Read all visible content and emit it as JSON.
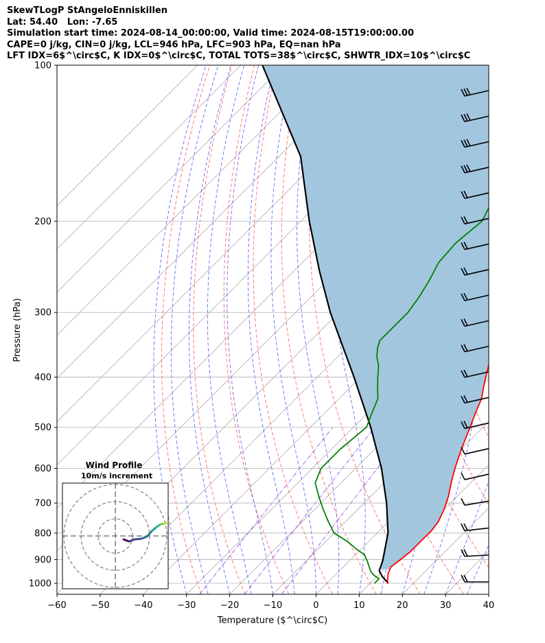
{
  "header": {
    "line1": "SkewTLogP StAngeloEnniskillen",
    "line2": "Lat: 54.40   Lon: -7.65",
    "line3": "Simulation start time: 2024-08-14_00:00:00, Valid time: 2024-08-15T19:00:00.00",
    "line4": "CAPE=0 j/kg, CIN=0 j/kg, LCL=946 hPa, LFC=903 hPa, EQ=nan hPa",
    "line5": "LFT IDX=6$^\\circ$C, K IDX=0$^\\circ$C, TOTAL TOTS=38$^\\circ$C, SHWTR_IDX=10$^\\circ$C"
  },
  "chart_data": {
    "type": "skewt",
    "xlabel": "Temperature ($^\\circ$C)",
    "ylabel": "Pressure (hPa)",
    "xlim": [
      -60,
      40
    ],
    "ylim": [
      1050,
      100
    ],
    "log_y": true,
    "grid": true,
    "x_ticks": [
      "−60",
      "−50",
      "−40",
      "−30",
      "−20",
      "−10",
      "0",
      "10",
      "20",
      "30",
      "40"
    ],
    "y_ticks": [
      "100",
      "200",
      "300",
      "400",
      "500",
      "600",
      "700",
      "800",
      "900",
      "1000"
    ],
    "colors": {
      "temperature": "#ff0000",
      "dewpoint": "#008000",
      "parcel": "#000000",
      "fill": "#a3c6df",
      "dry_adiabat": "#ff4444",
      "moist_adiabat": "#4444ff",
      "mixing_ratio": "#8a2be2",
      "isotherm": "#aaaaaa"
    },
    "series": [
      {
        "key": "temperature",
        "points": [
          [
            1000,
            14
          ],
          [
            960,
            12
          ],
          [
            930,
            11
          ],
          [
            900,
            11.5
          ],
          [
            870,
            12
          ],
          [
            820,
            12
          ],
          [
            790,
            12
          ],
          [
            760,
            11.5
          ],
          [
            720,
            10
          ],
          [
            680,
            8
          ],
          [
            640,
            5.5
          ],
          [
            600,
            3
          ],
          [
            550,
            0
          ],
          [
            500,
            -3
          ],
          [
            470,
            -5
          ],
          [
            440,
            -7
          ],
          [
            420,
            -9
          ],
          [
            400,
            -11
          ],
          [
            380,
            -13
          ],
          [
            360,
            -15
          ],
          [
            340,
            -16.5
          ],
          [
            320,
            -18
          ],
          [
            300,
            -19.5
          ],
          [
            280,
            -21
          ],
          [
            260,
            -23
          ],
          [
            240,
            -26
          ],
          [
            220,
            -29
          ],
          [
            200,
            -32
          ],
          [
            185,
            -35
          ],
          [
            170,
            -38.5
          ],
          [
            150,
            -43
          ],
          [
            130,
            -48
          ],
          [
            115,
            -52
          ],
          [
            106,
            -55
          ],
          [
            100,
            -57
          ]
        ]
      },
      {
        "key": "dewpoint",
        "points": [
          [
            1000,
            11
          ],
          [
            980,
            11
          ],
          [
            965,
            9
          ],
          [
            950,
            7.5
          ],
          [
            930,
            6
          ],
          [
            910,
            4.5
          ],
          [
            880,
            2
          ],
          [
            860,
            -1
          ],
          [
            830,
            -5
          ],
          [
            800,
            -10
          ],
          [
            760,
            -14
          ],
          [
            720,
            -18
          ],
          [
            680,
            -22
          ],
          [
            640,
            -26
          ],
          [
            600,
            -28
          ],
          [
            550,
            -28
          ],
          [
            500,
            -27
          ],
          [
            470,
            -29
          ],
          [
            440,
            -31
          ],
          [
            420,
            -33.5
          ],
          [
            400,
            -36
          ],
          [
            380,
            -38.5
          ],
          [
            365,
            -41
          ],
          [
            350,
            -43
          ],
          [
            340,
            -44
          ],
          [
            320,
            -44
          ],
          [
            300,
            -44
          ],
          [
            280,
            -45
          ],
          [
            260,
            -46.5
          ],
          [
            240,
            -48.5
          ],
          [
            220,
            -49
          ],
          [
            200,
            -48
          ],
          [
            185,
            -50
          ],
          [
            170,
            -53
          ],
          [
            160,
            -57
          ],
          [
            150,
            -60
          ],
          [
            140,
            -62
          ],
          [
            130,
            -64
          ],
          [
            120,
            -67
          ],
          [
            110,
            -70
          ],
          [
            100,
            -74
          ]
        ]
      },
      {
        "key": "parcel",
        "points": [
          [
            1000,
            14.2
          ],
          [
            970,
            11.2
          ],
          [
            946,
            9.2
          ],
          [
            903,
            7.6
          ],
          [
            800,
            2.5
          ],
          [
            700,
            -4.8
          ],
          [
            600,
            -14
          ],
          [
            500,
            -26
          ],
          [
            400,
            -41.5
          ],
          [
            300,
            -62
          ],
          [
            250,
            -74
          ],
          [
            200,
            -88
          ],
          [
            150,
            -105
          ],
          [
            100,
            -135
          ]
        ]
      }
    ],
    "hodograph": {
      "title": "Wind Profile",
      "subtitle": "10m/s increment"
    },
    "wind_barb_count": 20
  }
}
